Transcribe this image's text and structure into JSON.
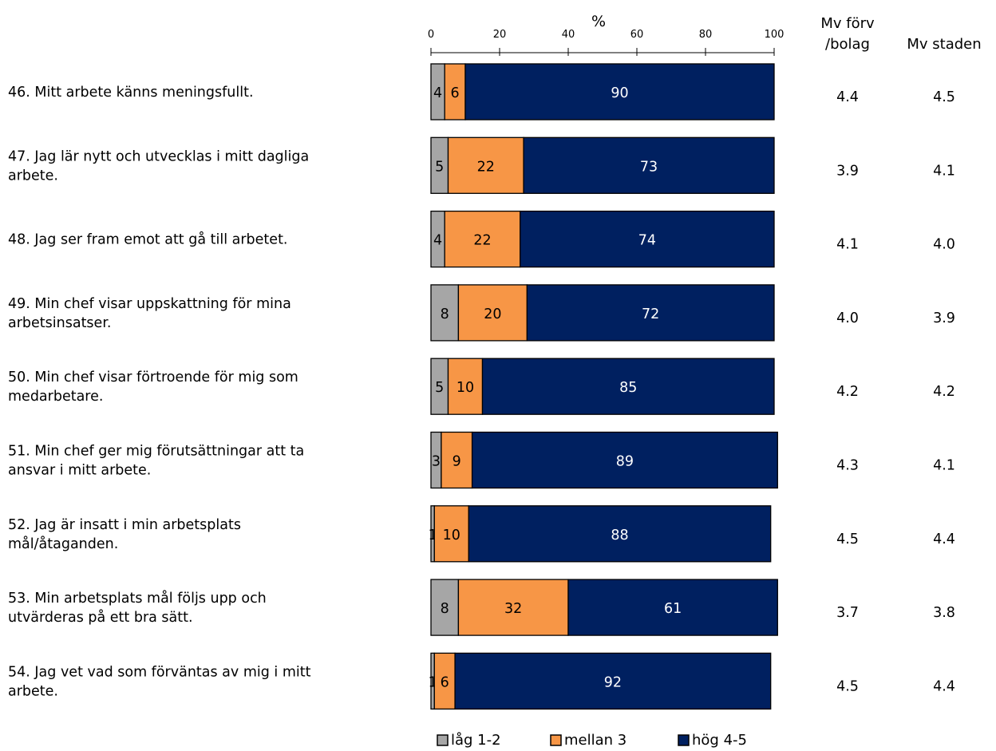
{
  "chart_data": {
    "type": "bar",
    "orientation": "horizontal",
    "stacked": true,
    "xlabel": "%",
    "xlim": [
      0,
      100
    ],
    "x_ticks": [
      "0",
      "20",
      "40",
      "60",
      "80",
      "100"
    ],
    "legend_position": "bottom",
    "categories": [
      "46. Mitt arbete känns meningsfullt.",
      "47. Jag lär nytt och utvecklas i mitt dagliga arbete.",
      "48. Jag ser fram emot att gå till arbetet.",
      "49. Min chef visar uppskattning för mina arbetsinsatser.",
      "50. Min chef visar förtroende för mig som medarbetare.",
      "51. Min chef ger mig förutsättningar att ta ansvar i mitt arbete.",
      "52. Jag är insatt i min arbetsplats mål/åtaganden.",
      "53. Min arbetsplats mål följs upp och utvärderas på ett bra sätt.",
      "54. Jag vet vad som förväntas av mig i mitt arbete."
    ],
    "category_lines": [
      [
        "46. Mitt arbete känns meningsfullt."
      ],
      [
        "47. Jag lär nytt och utvecklas i mitt dagliga",
        "arbete."
      ],
      [
        "48. Jag ser fram emot att gå till arbetet."
      ],
      [
        "49. Min chef visar uppskattning för mina",
        "arbetsinsatser."
      ],
      [
        "50. Min chef visar förtroende för mig som",
        "medarbetare."
      ],
      [
        "51. Min chef ger mig förutsättningar att ta",
        "ansvar i mitt arbete."
      ],
      [
        "52. Jag är insatt i min arbetsplats",
        "mål/åtaganden."
      ],
      [
        "53. Min arbetsplats mål följs upp och",
        "utvärderas på ett bra sätt."
      ],
      [
        "54. Jag vet vad som förväntas av mig i mitt",
        "arbete."
      ]
    ],
    "series": [
      {
        "name": "låg 1-2",
        "color": "#a6a6a6",
        "values": [
          4,
          5,
          4,
          8,
          5,
          3,
          1,
          8,
          1
        ]
      },
      {
        "name": "mellan 3",
        "color": "#f79646",
        "values": [
          6,
          22,
          22,
          20,
          10,
          9,
          10,
          32,
          6
        ]
      },
      {
        "name": "hög 4-5",
        "color": "#002060",
        "values": [
          90,
          73,
          74,
          72,
          85,
          89,
          88,
          61,
          92
        ]
      }
    ],
    "side_columns": [
      {
        "header": [
          "Mv förv",
          "/bolag"
        ],
        "values": [
          "4.4",
          "3.9",
          "4.1",
          "4.0",
          "4.2",
          "4.3",
          "4.5",
          "3.7",
          "4.5"
        ]
      },
      {
        "header": [
          "Mv staden"
        ],
        "values": [
          "4.5",
          "4.1",
          "4.0",
          "3.9",
          "4.2",
          "4.1",
          "4.4",
          "3.8",
          "4.4"
        ]
      }
    ]
  }
}
